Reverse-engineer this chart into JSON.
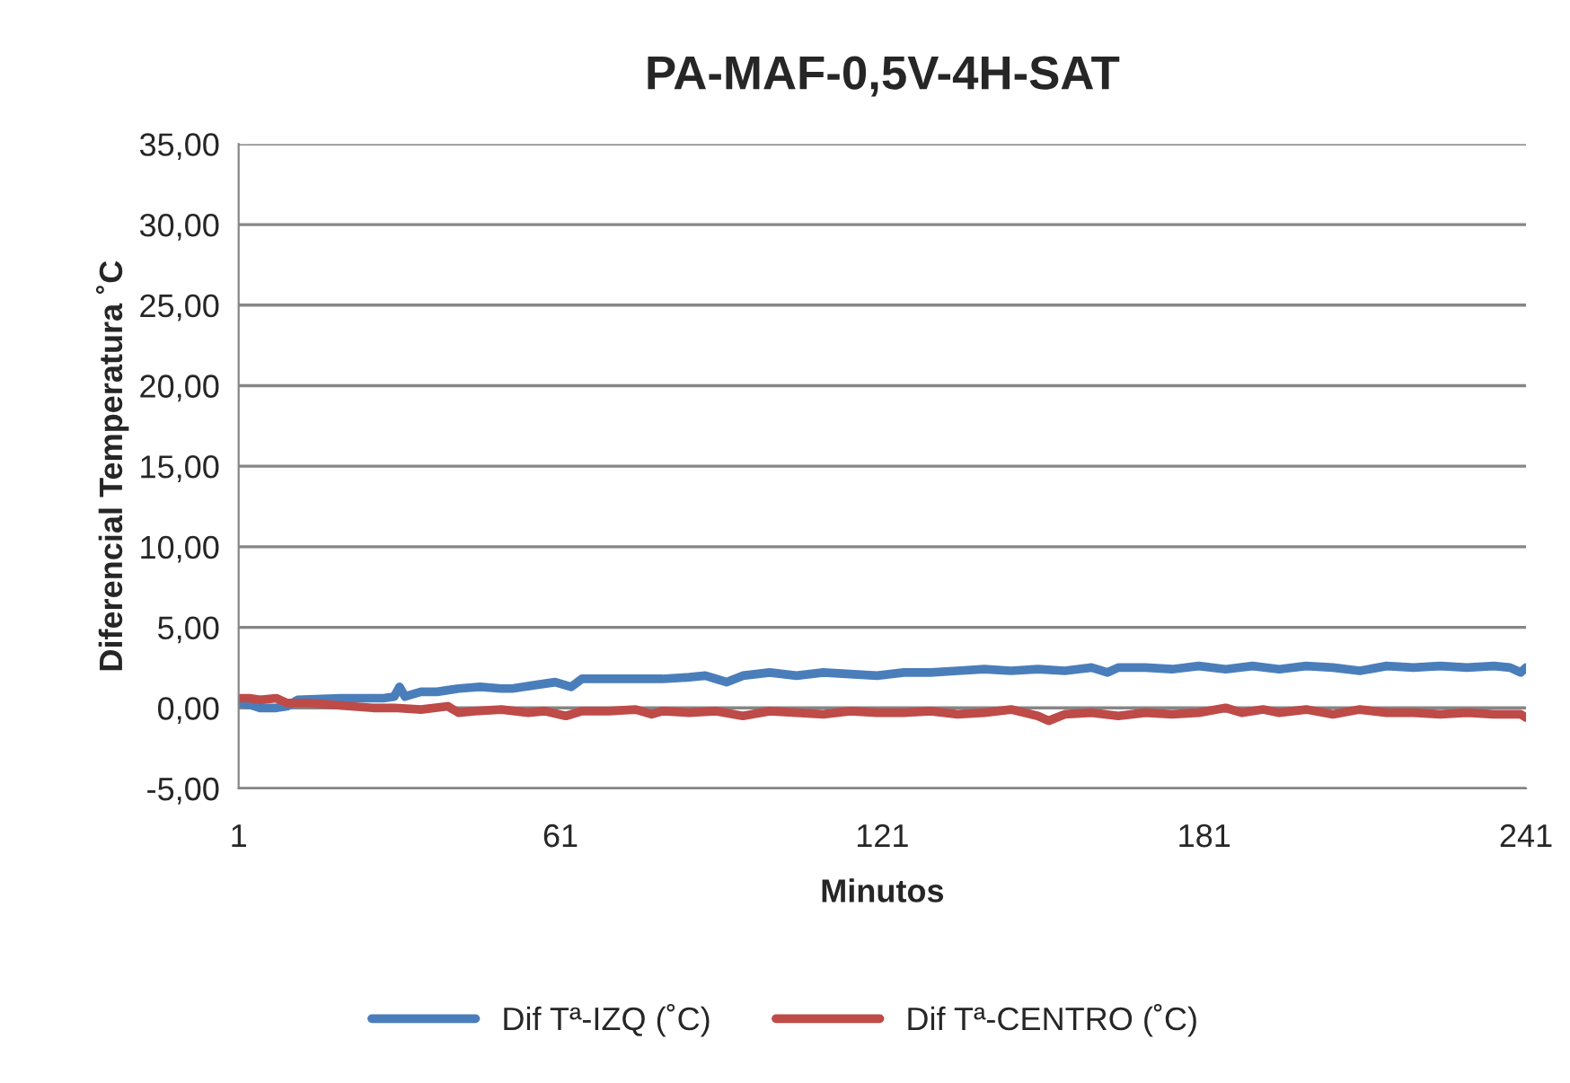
{
  "chart_data": {
    "type": "line",
    "title": "PA-MAF-0,5V-4H-SAT",
    "xlabel": "Minutos",
    "ylabel": "Diferencial Temperatura ˚C",
    "xlim": [
      1,
      241
    ],
    "xticks": [
      1,
      61,
      121,
      181,
      241
    ],
    "ylim": [
      -5,
      35
    ],
    "yticks": [
      {
        "value": -5,
        "label": "-5,00"
      },
      {
        "value": 0,
        "label": "0,00"
      },
      {
        "value": 5,
        "label": "5,00"
      },
      {
        "value": 10,
        "label": "10,00"
      },
      {
        "value": 15,
        "label": "15,00"
      },
      {
        "value": 20,
        "label": "20,00"
      },
      {
        "value": 25,
        "label": "25,00"
      },
      {
        "value": 30,
        "label": "30,00"
      },
      {
        "value": 35,
        "label": "35,00"
      }
    ],
    "grid": "y",
    "legend": "bottom",
    "marker": "none",
    "line_style": "solid",
    "series": [
      {
        "name": "Dif Tª-IZQ (˚C)",
        "color": "#4a7ebb",
        "x": [
          1,
          3,
          5,
          8,
          10,
          12,
          20,
          28,
          30,
          31,
          32,
          35,
          38,
          42,
          46,
          50,
          52,
          56,
          60,
          63,
          65,
          70,
          75,
          80,
          85,
          88,
          90,
          92,
          95,
          100,
          105,
          110,
          115,
          120,
          125,
          130,
          135,
          140,
          145,
          150,
          155,
          160,
          163,
          165,
          170,
          175,
          180,
          185,
          190,
          195,
          200,
          205,
          210,
          215,
          220,
          225,
          230,
          235,
          238,
          240,
          241
        ],
        "values": [
          0.3,
          0.2,
          0.0,
          0.0,
          0.1,
          0.5,
          0.6,
          0.6,
          0.7,
          1.3,
          0.7,
          1.0,
          1.0,
          1.2,
          1.3,
          1.2,
          1.2,
          1.4,
          1.6,
          1.3,
          1.8,
          1.8,
          1.8,
          1.8,
          1.9,
          2.0,
          1.8,
          1.6,
          2.0,
          2.2,
          2.0,
          2.2,
          2.1,
          2.0,
          2.2,
          2.2,
          2.3,
          2.4,
          2.3,
          2.4,
          2.3,
          2.5,
          2.2,
          2.5,
          2.5,
          2.4,
          2.6,
          2.4,
          2.6,
          2.4,
          2.6,
          2.5,
          2.3,
          2.6,
          2.5,
          2.6,
          2.5,
          2.6,
          2.5,
          2.2,
          2.5
        ]
      },
      {
        "name": "Dif Tª-CENTRO (˚C)",
        "color": "#be4b48",
        "x": [
          1,
          3,
          5,
          8,
          10,
          14,
          18,
          22,
          26,
          30,
          35,
          40,
          42,
          45,
          50,
          55,
          58,
          62,
          65,
          70,
          75,
          78,
          80,
          85,
          90,
          95,
          100,
          105,
          110,
          115,
          120,
          125,
          130,
          135,
          140,
          145,
          150,
          152,
          155,
          160,
          165,
          170,
          175,
          180,
          185,
          188,
          192,
          195,
          200,
          205,
          210,
          215,
          220,
          225,
          230,
          235,
          240,
          241
        ],
        "values": [
          0.6,
          0.6,
          0.5,
          0.6,
          0.3,
          0.3,
          0.2,
          0.1,
          0.0,
          0.0,
          -0.1,
          0.1,
          -0.3,
          -0.2,
          -0.1,
          -0.3,
          -0.2,
          -0.5,
          -0.2,
          -0.2,
          -0.1,
          -0.4,
          -0.2,
          -0.3,
          -0.2,
          -0.5,
          -0.2,
          -0.3,
          -0.4,
          -0.2,
          -0.3,
          -0.3,
          -0.2,
          -0.4,
          -0.3,
          -0.1,
          -0.5,
          -0.8,
          -0.4,
          -0.3,
          -0.5,
          -0.3,
          -0.4,
          -0.3,
          0.0,
          -0.3,
          -0.1,
          -0.3,
          -0.1,
          -0.4,
          -0.1,
          -0.3,
          -0.3,
          -0.4,
          -0.3,
          -0.4,
          -0.4,
          -0.6
        ]
      }
    ]
  }
}
